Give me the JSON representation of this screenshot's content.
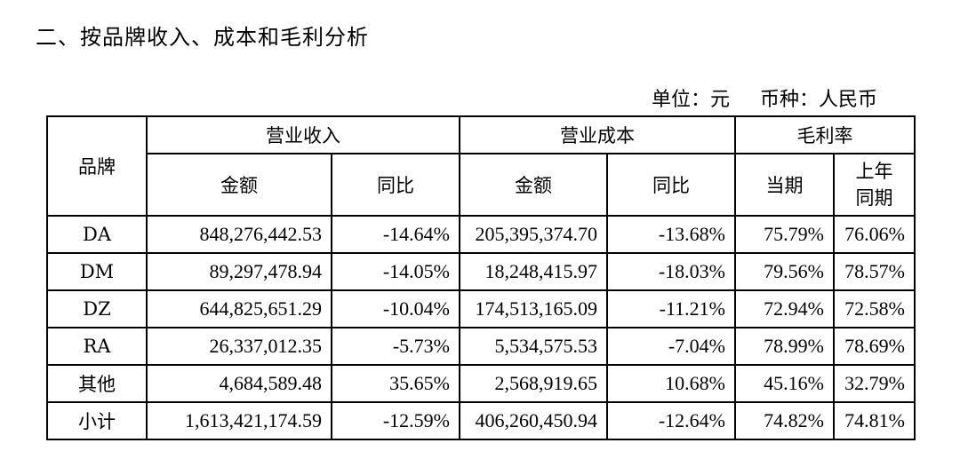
{
  "title": "二、按品牌收入、成本和毛利分析",
  "unit": {
    "unit_label": "单位：元",
    "currency_label": "币种：人民币"
  },
  "table": {
    "headers": {
      "brand": "品牌",
      "revenue": "营业收入",
      "cost": "营业成本",
      "margin": "毛利率",
      "amount": "金额",
      "yoy": "同比",
      "current_period": "当期",
      "prior_year_line1": "上年",
      "prior_year_line2": "同期"
    },
    "rows": [
      {
        "brand": "DA",
        "revenue": "848,276,442.53",
        "revenue_yoy": "-14.64%",
        "cost": "205,395,374.70",
        "cost_yoy": "-13.68%",
        "margin_current": "75.79%",
        "margin_prior": "76.06%"
      },
      {
        "brand": "DM",
        "revenue": "89,297,478.94",
        "revenue_yoy": "-14.05%",
        "cost": "18,248,415.97",
        "cost_yoy": "-18.03%",
        "margin_current": "79.56%",
        "margin_prior": "78.57%"
      },
      {
        "brand": "DZ",
        "revenue": "644,825,651.29",
        "revenue_yoy": "-10.04%",
        "cost": "174,513,165.09",
        "cost_yoy": "-11.21%",
        "margin_current": "72.94%",
        "margin_prior": "72.58%"
      },
      {
        "brand": "RA",
        "revenue": "26,337,012.35",
        "revenue_yoy": "-5.73%",
        "cost": "5,534,575.53",
        "cost_yoy": "-7.04%",
        "margin_current": "78.99%",
        "margin_prior": "78.69%"
      },
      {
        "brand": "其他",
        "revenue": "4,684,589.48",
        "revenue_yoy": "35.65%",
        "cost": "2,568,919.65",
        "cost_yoy": "10.68%",
        "margin_current": "45.16%",
        "margin_prior": "32.79%"
      },
      {
        "brand": "小计",
        "revenue": "1,613,421,174.59",
        "revenue_yoy": "-12.59%",
        "cost": "406,260,450.94",
        "cost_yoy": "-12.64%",
        "margin_current": "74.82%",
        "margin_prior": "74.81%"
      }
    ]
  }
}
